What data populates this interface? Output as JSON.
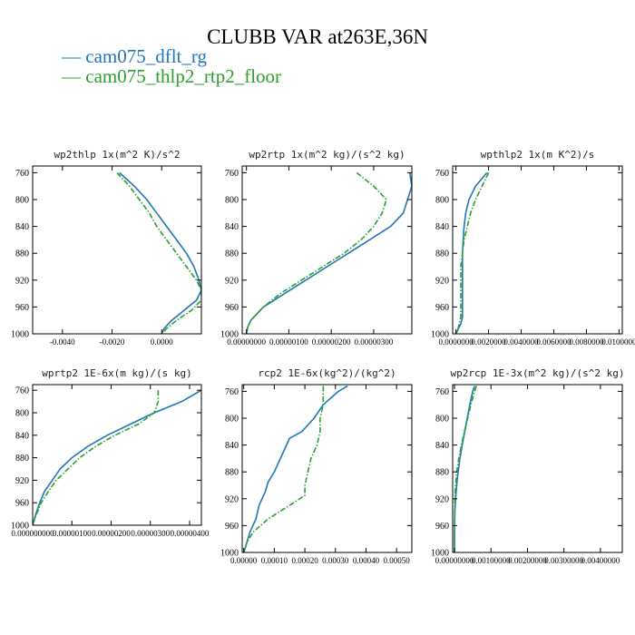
{
  "figure": {
    "title": "CLUBB VAR at263E,36N",
    "legend": [
      {
        "label": "— cam075_dflt_rg",
        "color": "#1f77b4",
        "dash": "solid"
      },
      {
        "label": "— cam075_thlp2_rtp2_floor",
        "color": "#2ca02c",
        "dash": "dashdot"
      }
    ]
  },
  "chart_data": [
    {
      "type": "line",
      "title": "wp2thlp  1x(m^2 K)/s^2",
      "xlim": [
        -0.0052,
        0.0016
      ],
      "ylim": [
        1000,
        750
      ],
      "xticks": [
        -0.004,
        -0.002,
        0.0
      ],
      "xticklabels": [
        "-0.0040",
        "-0.0020",
        "0.0000"
      ],
      "yticks": [
        760,
        800,
        840,
        880,
        920,
        960,
        1000
      ],
      "series": [
        {
          "pressure": [
            760,
            780,
            800,
            820,
            840,
            860,
            880,
            900,
            920,
            935,
            950,
            965,
            980,
            992,
            1000
          ],
          "values": [
            -0.0017,
            -0.0011,
            -0.0006,
            -0.0002,
            0.0002,
            0.0006,
            0.001,
            0.0013,
            0.0015,
            0.0016,
            0.0014,
            0.0009,
            0.0004,
            0.0001,
            0.0
          ]
        },
        {
          "pressure": [
            760,
            780,
            800,
            820,
            840,
            860,
            880,
            900,
            920,
            935,
            950,
            965,
            980,
            992,
            1000
          ],
          "values": [
            -0.0018,
            -0.0013,
            -0.0009,
            -0.0005,
            -0.0002,
            0.0002,
            0.0006,
            0.001,
            0.0014,
            0.0016,
            0.0016,
            0.0012,
            0.0006,
            0.0002,
            0.0
          ]
        }
      ]
    },
    {
      "type": "line",
      "title": "wp2rtp  1x(m^2 kg)/(s^2 kg)",
      "xlim": [
        -1e-07,
        3.9e-06
      ],
      "ylim": [
        1000,
        750
      ],
      "xticks": [
        0.0,
        1e-06,
        2e-06,
        3e-06
      ],
      "xticklabels": [
        "0.00000000",
        "0.00000100",
        "0.00000200",
        "0.00000300"
      ],
      "yticks": [
        760,
        800,
        840,
        880,
        920,
        960,
        1000
      ],
      "series": [
        {
          "pressure": [
            760,
            780,
            800,
            820,
            840,
            860,
            880,
            900,
            920,
            940,
            960,
            980,
            990,
            1000
          ],
          "values": [
            3.85e-06,
            3.9e-06,
            3.8e-06,
            3.7e-06,
            3.4e-06,
            2.9e-06,
            2.4e-06,
            1.9e-06,
            1.4e-06,
            9e-07,
            4e-07,
            1e-07,
            3e-08,
            0.0
          ]
        },
        {
          "pressure": [
            760,
            780,
            800,
            820,
            840,
            860,
            880,
            900,
            920,
            940,
            960,
            980,
            990,
            1000
          ],
          "values": [
            2.6e-06,
            3e-06,
            3.3e-06,
            3.2e-06,
            3e-06,
            2.7e-06,
            2.3e-06,
            1.8e-06,
            1.3e-06,
            8e-07,
            4e-07,
            1e-07,
            3e-08,
            0.0
          ]
        }
      ]
    },
    {
      "type": "line",
      "title": "wpthlp2  1x(m K^2)/s",
      "xlim": [
        -0.0002,
        0.0102
      ],
      "ylim": [
        1000,
        750
      ],
      "xticks": [
        0.0,
        0.002,
        0.004,
        0.006,
        0.008,
        0.01
      ],
      "xticklabels": [
        "0.0000000",
        "0.0020000",
        "0.0040000",
        "0.0060000",
        "0.0080000",
        "0.0100000"
      ],
      "yticks": [
        760,
        800,
        840,
        880,
        920,
        960,
        1000
      ],
      "series": [
        {
          "pressure": [
            760,
            780,
            800,
            820,
            840,
            860,
            880,
            900,
            920,
            940,
            960,
            975,
            985,
            995,
            1000
          ],
          "values": [
            0.0019,
            0.0012,
            0.0008,
            0.0006,
            0.0005,
            0.00045,
            0.0004,
            0.0004,
            0.0004,
            0.0004,
            0.0004,
            0.0004,
            0.0003,
            0.0001,
            0.0
          ]
        },
        {
          "pressure": [
            760,
            780,
            800,
            820,
            840,
            860,
            880,
            900,
            920,
            940,
            960,
            975,
            985,
            995,
            1000
          ],
          "values": [
            0.002,
            0.0016,
            0.0012,
            0.0009,
            0.0007,
            0.0005,
            0.0004,
            0.0003,
            0.0003,
            0.0003,
            0.0003,
            0.0003,
            0.0002,
            0.0001,
            0.0
          ]
        }
      ]
    },
    {
      "type": "line",
      "title": "wprtp2  1E-6x(m kg)/(s kg)",
      "xlim": [
        0.0,
        4.3e-06
      ],
      "ylim": [
        1000,
        750
      ],
      "xticks": [
        0.0,
        1e-06,
        2e-06,
        3e-06,
        4e-06
      ],
      "xticklabels": [
        "0.000000000",
        "0.00000100",
        "0.00000200",
        "0.00000300",
        "0.00000400"
      ],
      "yticks": [
        760,
        800,
        840,
        880,
        920,
        960,
        1000
      ],
      "series": [
        {
          "pressure": [
            760,
            780,
            800,
            820,
            840,
            860,
            880,
            900,
            920,
            940,
            960,
            980,
            995,
            1000
          ],
          "values": [
            4.3e-06,
            3.8e-06,
            3.1e-06,
            2.5e-06,
            1.9e-06,
            1.4e-06,
            1e-06,
            7e-07,
            5e-07,
            3e-07,
            1.8e-07,
            8e-08,
            2e-08,
            0.0
          ]
        },
        {
          "pressure": [
            760,
            780,
            800,
            820,
            840,
            860,
            880,
            900,
            920,
            940,
            960,
            980,
            995,
            1000
          ],
          "values": [
            3.2e-06,
            3.2e-06,
            3.1e-06,
            2.7e-06,
            2.1e-06,
            1.6e-06,
            1.2e-06,
            9e-07,
            6e-07,
            4e-07,
            2.2e-07,
            1e-07,
            2e-08,
            0.0
          ]
        }
      ]
    },
    {
      "type": "line",
      "title": "rcp2  1E-6x(kg^2)/(kg^2)",
      "xlim": [
        -5e-06,
        0.00055
      ],
      "ylim": [
        1000,
        750
      ],
      "xticks": [
        0.0,
        0.0001,
        0.0002,
        0.0003,
        0.0004,
        0.0005
      ],
      "xticklabels": [
        "0.00000",
        "0.00010",
        "0.00020",
        "0.00030",
        "0.00040",
        "0.00050"
      ],
      "yticks": [
        760,
        800,
        840,
        880,
        920,
        960,
        1000
      ],
      "series": [
        {
          "pressure": [
            752,
            760,
            780,
            800,
            820,
            830,
            850,
            870,
            880,
            895,
            910,
            930,
            950,
            970,
            985,
            995,
            1000
          ],
          "values": [
            0.00034,
            0.00031,
            0.00026,
            0.00023,
            0.00019,
            0.00015,
            0.00013,
            0.00011,
            0.0001,
            8e-05,
            7e-05,
            5e-05,
            4e-05,
            2e-05,
            1e-05,
            4e-06,
            0.0
          ]
        },
        {
          "pressure": [
            752,
            760,
            780,
            800,
            820,
            840,
            860,
            880,
            900,
            915,
            930,
            950,
            970,
            985,
            995,
            1000
          ],
          "values": [
            0.00026,
            0.00026,
            0.00026,
            0.00025,
            0.00025,
            0.00024,
            0.00022,
            0.00021,
            0.0002,
            0.0002,
            0.00015,
            8e-05,
            3e-05,
            1e-05,
            4e-06,
            0.0
          ]
        }
      ]
    },
    {
      "type": "line",
      "title": "wp2rcp  1E-3x(m^2 kg)/(s^2 kg)",
      "xlim": [
        -5e-05,
        0.0046
      ],
      "ylim": [
        1000,
        750
      ],
      "xticks": [
        0.0,
        0.001,
        0.002,
        0.003,
        0.004
      ],
      "xticklabels": [
        "0.00000000",
        "0.00100000",
        "0.00200000",
        "0.00300000",
        "0.00400000"
      ],
      "yticks": [
        760,
        800,
        840,
        880,
        920,
        960,
        1000
      ],
      "series": [
        {
          "pressure": [
            752,
            760,
            780,
            800,
            820,
            840,
            860,
            880,
            900,
            920,
            940,
            960,
            980,
            1000
          ],
          "values": [
            0.00055,
            0.0005,
            0.00042,
            0.00035,
            0.00028,
            0.00021,
            0.00015,
            0.0001,
            6e-05,
            3e-05,
            1e-05,
            5e-06,
            0.0,
            0.0
          ]
        },
        {
          "pressure": [
            752,
            760,
            780,
            800,
            820,
            840,
            860,
            880,
            900,
            920,
            940,
            960,
            980,
            1000
          ],
          "values": [
            0.0006,
            0.00055,
            0.00045,
            0.00036,
            0.00027,
            0.00019,
            0.00012,
            6e-05,
            3e-05,
            1e-05,
            5e-06,
            0.0,
            0.0,
            0.0
          ]
        }
      ]
    }
  ]
}
